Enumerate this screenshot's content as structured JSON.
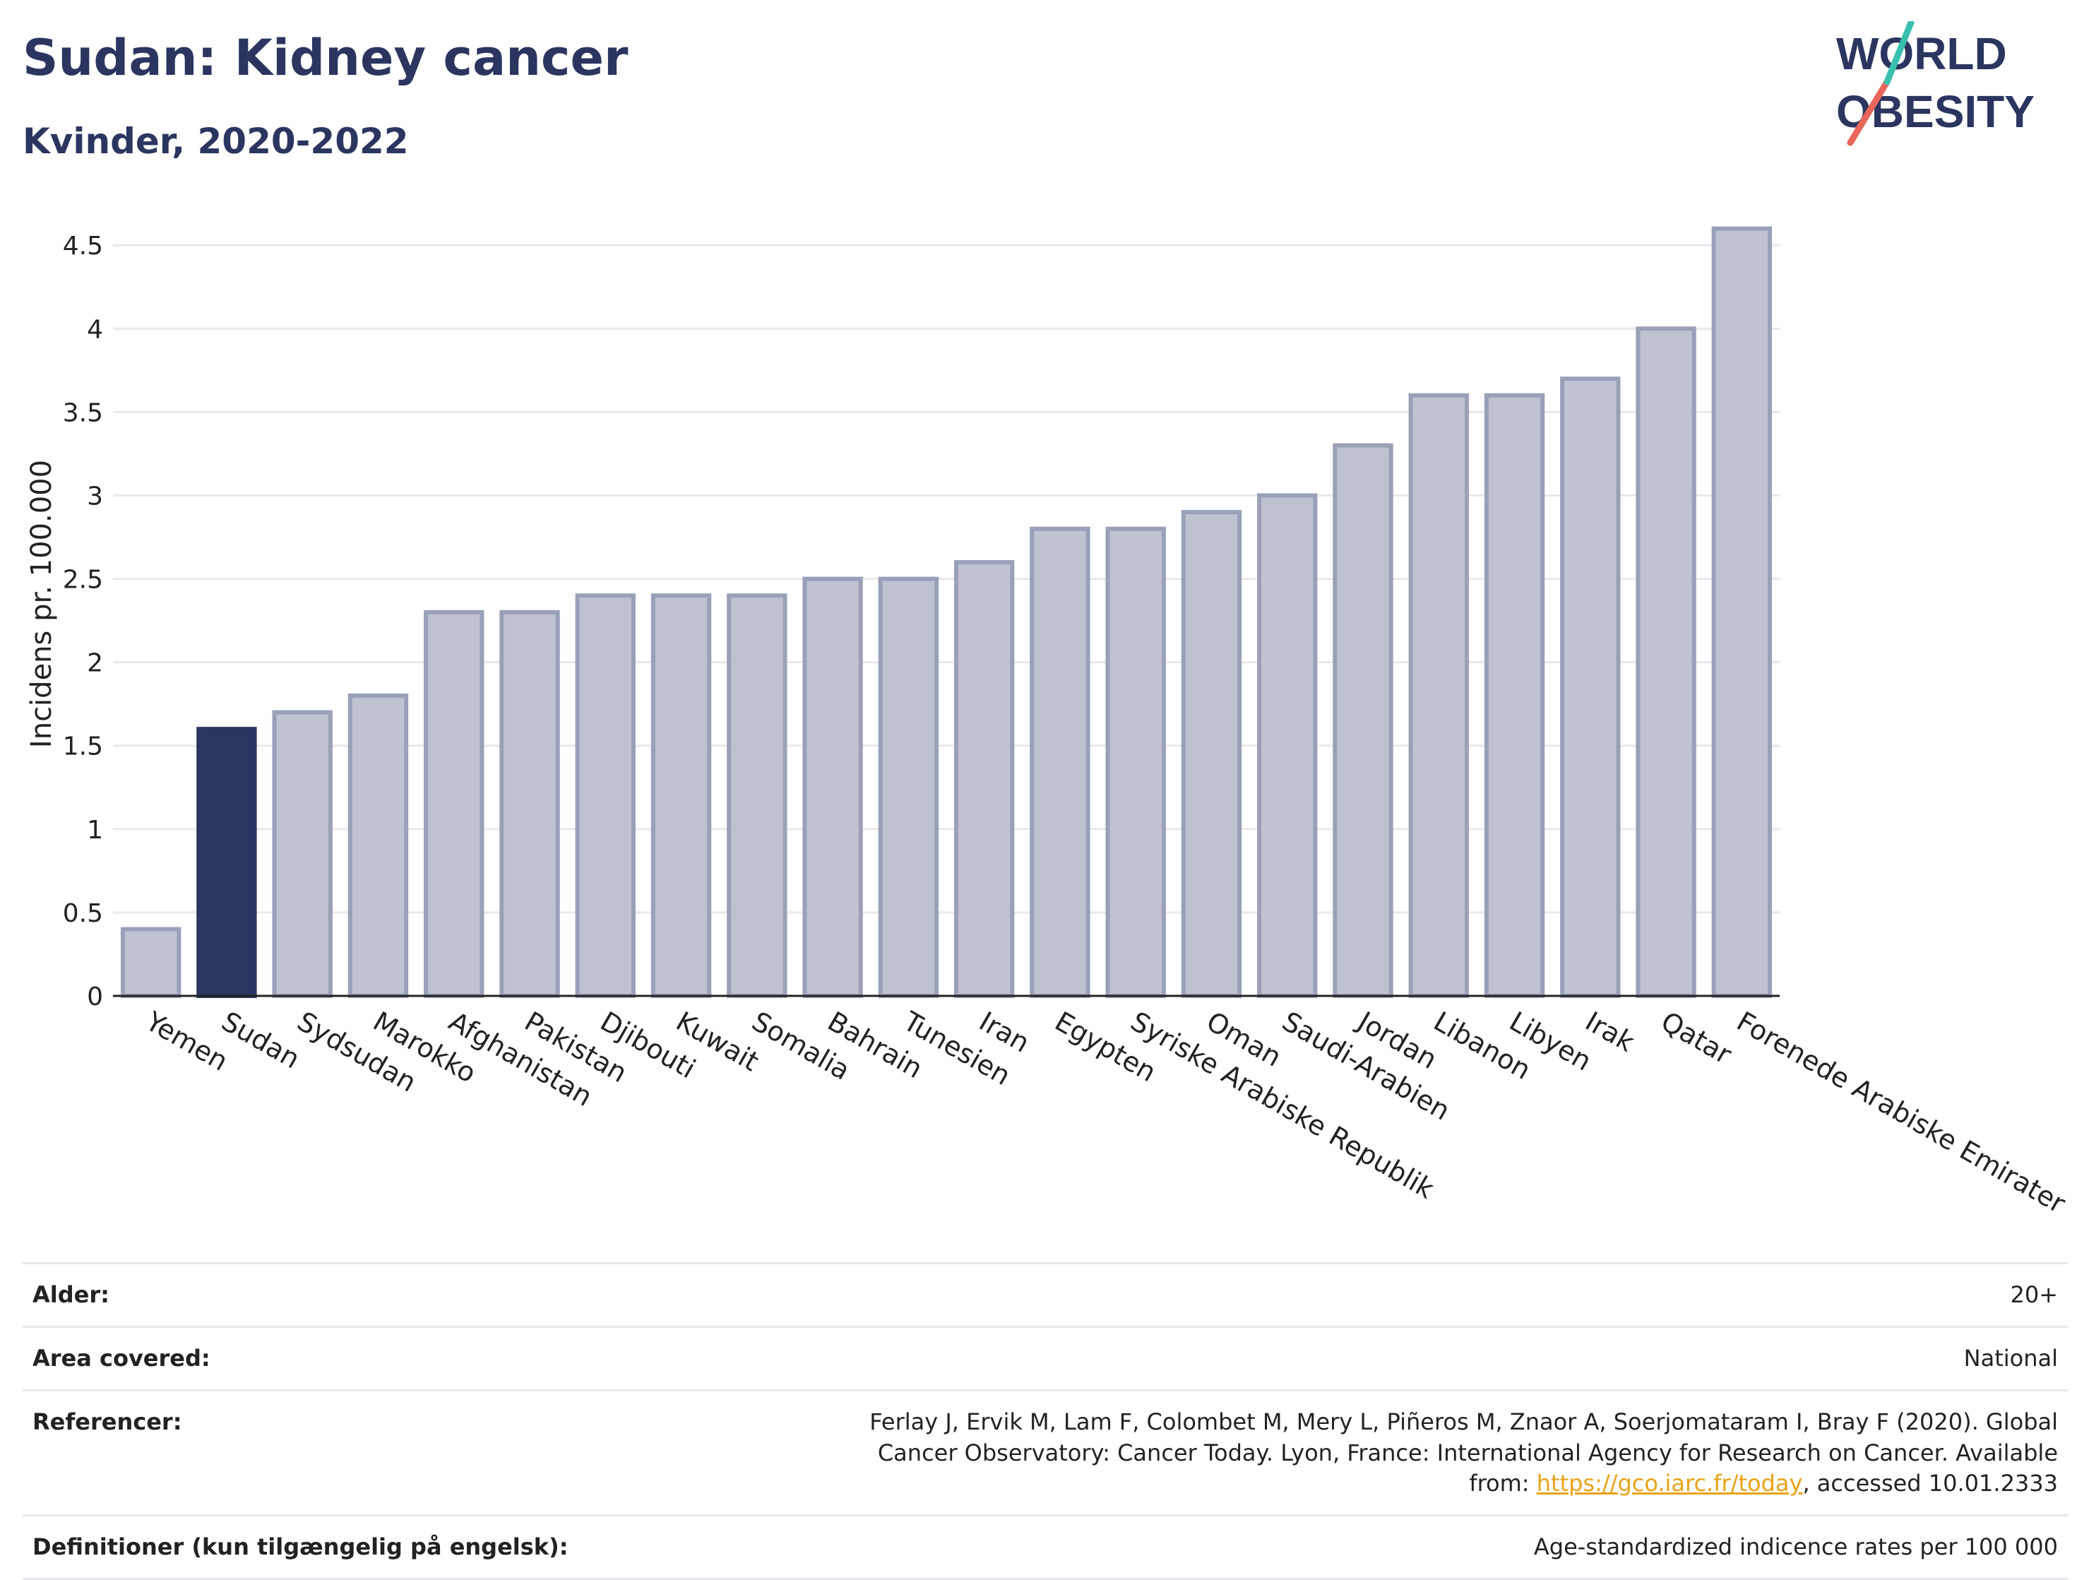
{
  "header": {
    "title": "Sudan: Kidney cancer",
    "subtitle": "Kvinder, 2020-2022"
  },
  "logo": {
    "line1": "WORLD",
    "line2": "OBESITY",
    "accent_teal": "#3bbfad",
    "accent_red": "#e8675a",
    "brand_color": "#2b3560"
  },
  "colors": {
    "highlight_bar": "#2b3560",
    "other_bar": "#bfc2d0",
    "other_bar_border": "#9aa0b8",
    "link": "#e8a317"
  },
  "chart_data": {
    "type": "bar",
    "title": "Sudan: Kidney cancer",
    "subtitle": "Kvinder, 2020-2022",
    "xlabel": "",
    "ylabel": "Incidens pr. 100.000",
    "ylim": [
      0,
      4.7
    ],
    "yticks": [
      0,
      0.5,
      1,
      1.5,
      2,
      2.5,
      3,
      3.5,
      4,
      4.5
    ],
    "ytick_labels": [
      "0",
      "0.5",
      "1",
      "1.5",
      "2",
      "2.5",
      "3",
      "3.5",
      "4",
      "4.5"
    ],
    "grid": true,
    "highlight": "Sudan",
    "categories": [
      "Yemen",
      "Sudan",
      "Sydsudan",
      "Marokko",
      "Afghanistan",
      "Pakistan",
      "Djibouti",
      "Kuwait",
      "Somalia",
      "Bahrain",
      "Tunesien",
      "Iran",
      "Egypten",
      "Syriske Arabiske Republik",
      "Oman",
      "Saudi-Arabien",
      "Jordan",
      "Libanon",
      "Libyen",
      "Irak",
      "Qatar",
      "Forenede Arabiske Emirater"
    ],
    "values": [
      0.4,
      1.6,
      1.7,
      1.8,
      2.3,
      2.3,
      2.4,
      2.4,
      2.4,
      2.5,
      2.5,
      2.6,
      2.8,
      2.8,
      2.9,
      3.0,
      3.3,
      3.6,
      3.6,
      3.7,
      4.0,
      4.6
    ]
  },
  "info": {
    "rows": [
      {
        "key": "Alder:",
        "value": "20+"
      },
      {
        "key": "Area covered:",
        "value": "National"
      },
      {
        "key": "Referencer:",
        "value_pre": "Ferlay J, Ervik M, Lam F, Colombet M, Mery L, Piñeros M, Znaor A, Soerjomataram I, Bray F (2020). Global Cancer Observatory: Cancer Today. Lyon, France: International Agency for Research on Cancer. Available from: ",
        "link": "https://gco.iarc.fr/today",
        "value_post": ", accessed 10.01.2333"
      },
      {
        "key": "Definitioner (kun tilgængelig på engelsk):",
        "value": "Age-standardized indicence rates per 100 000"
      }
    ]
  }
}
